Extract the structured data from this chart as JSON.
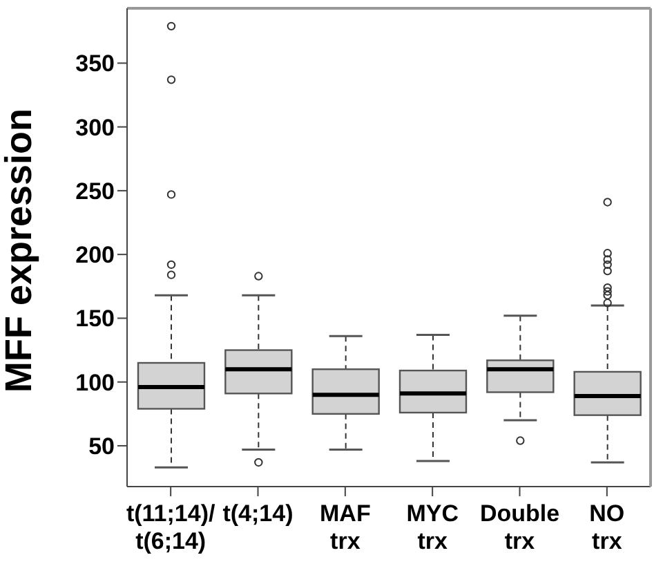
{
  "chart_data": {
    "type": "box",
    "ylabel": "MFF expression",
    "categories": [
      "t(11;14)/ t(6;14)",
      "t(4;14)",
      "MAF trx",
      "MYC trx",
      "Double trx",
      "NO trx"
    ],
    "ylim": [
      18,
      393
    ],
    "yticks": [
      50,
      100,
      150,
      200,
      250,
      300,
      350
    ],
    "color": "#d3d3d3",
    "boxes": [
      {
        "low": 33,
        "q1": 79,
        "median": 96,
        "q3": 115,
        "high": 168,
        "outliers": [
          379,
          337,
          247,
          192,
          184
        ]
      },
      {
        "low": 47,
        "q1": 91,
        "median": 110,
        "q3": 125,
        "high": 168,
        "outliers": [
          183,
          37
        ]
      },
      {
        "low": 47,
        "q1": 75,
        "median": 90,
        "q3": 110,
        "high": 136
      },
      {
        "low": 38,
        "q1": 76,
        "median": 91,
        "q3": 109,
        "high": 137
      },
      {
        "low": 70,
        "q1": 92,
        "median": 110,
        "q3": 117,
        "high": 152,
        "outliers": [
          54
        ]
      },
      {
        "low": 37,
        "q1": 74,
        "median": 89,
        "q3": 108,
        "high": 160,
        "outliers": [
          241,
          201,
          196,
          192,
          187,
          174,
          171,
          168,
          162
        ]
      }
    ]
  }
}
